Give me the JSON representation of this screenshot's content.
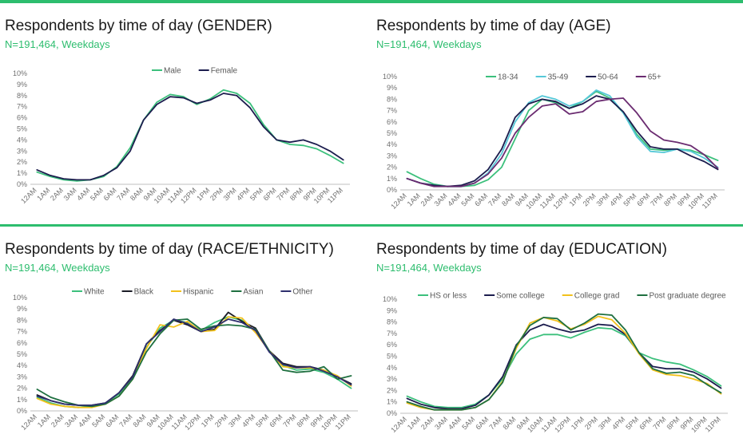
{
  "colors": {
    "accent": "#2dbd6e",
    "grid": "#d9d9d9",
    "axis": "#bfbfbf",
    "text": "#1a1a1a",
    "tick": "#707070"
  },
  "chart_data": [
    {
      "id": "gender",
      "type": "line",
      "title": "Respondents by time of day (GENDER)",
      "subtitle": "N=191,464, Weekdays",
      "legend_position": "top-center",
      "grid": false,
      "ylim": [
        0,
        10
      ],
      "y_ticks": [
        "0%",
        "1%",
        "2%",
        "3%",
        "4%",
        "5%",
        "6%",
        "7%",
        "8%",
        "9%",
        "10%"
      ],
      "categories": [
        "12AM",
        "1AM",
        "2AM",
        "3AM",
        "4AM",
        "5AM",
        "6AM",
        "7AM",
        "8AM",
        "9AM",
        "10AM",
        "11AM",
        "12PM",
        "1PM",
        "2PM",
        "3PM",
        "4PM",
        "5PM",
        "6PM",
        "7PM",
        "8PM",
        "9PM",
        "10PM",
        "11PM"
      ],
      "series": [
        {
          "name": "Male",
          "color": "#3cc07c",
          "values": [
            1.1,
            0.7,
            0.4,
            0.3,
            0.4,
            0.7,
            1.6,
            3.3,
            5.8,
            7.4,
            8.1,
            7.9,
            7.2,
            7.7,
            8.5,
            8.2,
            7.3,
            5.4,
            4.0,
            3.6,
            3.5,
            3.2,
            2.6,
            1.9
          ]
        },
        {
          "name": "Female",
          "color": "#1c1d4e",
          "values": [
            1.3,
            0.8,
            0.5,
            0.4,
            0.4,
            0.8,
            1.5,
            3.0,
            5.8,
            7.2,
            7.9,
            7.8,
            7.3,
            7.6,
            8.2,
            8.0,
            6.9,
            5.2,
            4.0,
            3.8,
            4.0,
            3.6,
            3.0,
            2.2
          ]
        }
      ]
    },
    {
      "id": "age",
      "type": "line",
      "title": "Respondents by time of day (AGE)",
      "subtitle": "N=191,464, Weekdays",
      "legend_position": "top-center",
      "grid": false,
      "ylim": [
        0,
        10
      ],
      "y_ticks": [
        "0%",
        "1%",
        "2%",
        "3%",
        "4%",
        "5%",
        "6%",
        "7%",
        "8%",
        "9%",
        "10%"
      ],
      "categories": [
        "12AM",
        "1AM",
        "2AM",
        "3AM",
        "4AM",
        "5AM",
        "6AM",
        "7AM",
        "8AM",
        "9AM",
        "10AM",
        "11AM",
        "12PM",
        "1PM",
        "2PM",
        "3PM",
        "4PM",
        "5PM",
        "6PM",
        "7PM",
        "8PM",
        "9PM",
        "10PM",
        "11PM"
      ],
      "series": [
        {
          "name": "18-34",
          "color": "#3cc07c",
          "values": [
            1.6,
            1.0,
            0.5,
            0.3,
            0.3,
            0.4,
            0.9,
            2.0,
            4.5,
            7.0,
            8.0,
            7.7,
            7.2,
            7.8,
            8.7,
            8.1,
            6.8,
            4.9,
            3.6,
            3.5,
            3.6,
            3.5,
            3.1,
            2.6
          ]
        },
        {
          "name": "35-49",
          "color": "#56c8d8",
          "values": [
            1.0,
            0.6,
            0.4,
            0.3,
            0.3,
            0.6,
            1.5,
            3.2,
            6.0,
            7.7,
            8.3,
            8.0,
            7.4,
            7.8,
            8.8,
            8.3,
            6.8,
            4.7,
            3.4,
            3.3,
            3.6,
            3.4,
            2.8,
            2.0
          ]
        },
        {
          "name": "50-64",
          "color": "#1c1d4e",
          "values": [
            1.0,
            0.6,
            0.4,
            0.3,
            0.4,
            0.8,
            1.8,
            3.6,
            6.4,
            7.6,
            8.0,
            7.8,
            7.2,
            7.6,
            8.3,
            8.0,
            6.9,
            5.2,
            3.8,
            3.6,
            3.6,
            3.0,
            2.5,
            1.8
          ]
        },
        {
          "name": "65+",
          "color": "#6b2c71",
          "values": [
            1.0,
            0.6,
            0.3,
            0.3,
            0.3,
            0.6,
            1.4,
            2.8,
            5.0,
            6.4,
            7.4,
            7.6,
            6.7,
            6.9,
            7.8,
            8.0,
            8.1,
            6.8,
            5.2,
            4.4,
            4.2,
            3.9,
            3.1,
            1.9
          ]
        }
      ]
    },
    {
      "id": "race",
      "type": "line",
      "title": "Respondents by time of day (RACE/ETHNICITY)",
      "subtitle": "N=191,464, Weekdays",
      "legend_position": "top-center",
      "grid": false,
      "ylim": [
        0,
        10
      ],
      "y_ticks": [
        "0%",
        "1%",
        "2%",
        "3%",
        "4%",
        "5%",
        "6%",
        "7%",
        "8%",
        "9%",
        "10%"
      ],
      "categories": [
        "12AM",
        "1AM",
        "2AM",
        "3AM",
        "4AM",
        "5AM",
        "6AM",
        "7AM",
        "8AM",
        "9AM",
        "10AM",
        "11AM",
        "12PM",
        "1PM",
        "2PM",
        "3PM",
        "4PM",
        "5PM",
        "6PM",
        "7PM",
        "8PM",
        "9PM",
        "10PM",
        "11PM"
      ],
      "series": [
        {
          "name": "White",
          "color": "#3cc07c",
          "values": [
            1.2,
            0.7,
            0.4,
            0.3,
            0.4,
            0.7,
            1.5,
            3.0,
            5.6,
            7.3,
            8.0,
            7.8,
            7.1,
            7.8,
            8.3,
            8.0,
            7.0,
            5.3,
            4.0,
            3.6,
            3.7,
            3.4,
            2.8,
            2.0
          ]
        },
        {
          "name": "Black",
          "color": "#1b1c26",
          "values": [
            1.4,
            0.9,
            0.6,
            0.5,
            0.5,
            0.7,
            1.6,
            3.1,
            5.9,
            7.1,
            8.0,
            7.6,
            7.0,
            7.2,
            8.7,
            7.9,
            7.3,
            5.3,
            4.2,
            3.9,
            3.9,
            3.6,
            3.0,
            2.4
          ]
        },
        {
          "name": "Hispanic",
          "color": "#f2c11c",
          "values": [
            1.1,
            0.6,
            0.4,
            0.3,
            0.3,
            0.6,
            1.3,
            2.8,
            5.5,
            7.6,
            7.4,
            7.9,
            7.0,
            7.1,
            8.3,
            8.2,
            6.9,
            5.3,
            3.9,
            3.8,
            3.8,
            3.6,
            3.1,
            2.2
          ]
        },
        {
          "name": "Asian",
          "color": "#1f7040",
          "values": [
            1.9,
            1.2,
            0.8,
            0.5,
            0.4,
            0.6,
            1.3,
            2.8,
            5.2,
            6.8,
            8.0,
            8.1,
            7.2,
            7.5,
            7.6,
            7.5,
            7.2,
            5.3,
            3.6,
            3.4,
            3.5,
            3.9,
            2.8,
            3.1
          ]
        },
        {
          "name": "Other",
          "color": "#2e2f6e",
          "values": [
            1.3,
            0.9,
            0.6,
            0.5,
            0.5,
            0.7,
            1.6,
            3.0,
            5.9,
            7.0,
            8.1,
            7.7,
            7.0,
            7.4,
            8.1,
            7.8,
            7.1,
            5.2,
            4.1,
            3.8,
            3.9,
            3.5,
            3.0,
            2.3
          ]
        }
      ]
    },
    {
      "id": "education",
      "type": "line",
      "title": "Respondents by time of day (EDUCATION)",
      "subtitle": "N=191,464, Weekdays",
      "legend_position": "top-center",
      "grid": false,
      "ylim": [
        0,
        10
      ],
      "y_ticks": [
        "0%",
        "1%",
        "2%",
        "3%",
        "4%",
        "5%",
        "6%",
        "7%",
        "8%",
        "9%",
        "10%"
      ],
      "categories": [
        "12AM",
        "1AM",
        "2AM",
        "3AM",
        "4AM",
        "5AM",
        "6AM",
        "7AM",
        "8AM",
        "9AM",
        "10AM",
        "11AM",
        "12PM",
        "1PM",
        "2PM",
        "3PM",
        "4PM",
        "5PM",
        "6PM",
        "7PM",
        "8PM",
        "9PM",
        "10PM",
        "11PM"
      ],
      "series": [
        {
          "name": "HS or less",
          "color": "#3cc07c",
          "values": [
            1.5,
            1.0,
            0.6,
            0.5,
            0.5,
            0.8,
            1.6,
            3.0,
            5.2,
            6.5,
            6.9,
            6.9,
            6.6,
            7.1,
            7.5,
            7.4,
            6.8,
            5.3,
            4.8,
            4.5,
            4.3,
            3.8,
            3.2,
            2.4
          ]
        },
        {
          "name": "Some college",
          "color": "#1c1d4e",
          "values": [
            1.3,
            0.8,
            0.5,
            0.4,
            0.4,
            0.7,
            1.6,
            3.2,
            6.0,
            7.3,
            7.8,
            7.4,
            7.1,
            7.3,
            7.8,
            7.7,
            6.9,
            5.3,
            4.1,
            3.9,
            3.9,
            3.6,
            3.0,
            2.2
          ]
        },
        {
          "name": "College grad",
          "color": "#f2c11c",
          "values": [
            0.9,
            0.5,
            0.3,
            0.3,
            0.3,
            0.5,
            1.2,
            2.8,
            5.7,
            7.9,
            8.4,
            8.1,
            7.4,
            7.8,
            8.5,
            8.2,
            7.0,
            5.2,
            3.8,
            3.4,
            3.3,
            3.0,
            2.6,
            1.7
          ]
        },
        {
          "name": "Post graduate degree",
          "color": "#1f7040",
          "values": [
            1.0,
            0.6,
            0.3,
            0.3,
            0.3,
            0.5,
            1.2,
            2.7,
            5.9,
            7.7,
            8.4,
            8.3,
            7.3,
            7.9,
            8.7,
            8.6,
            7.3,
            5.3,
            3.9,
            3.5,
            3.6,
            3.3,
            2.5,
            1.8
          ]
        }
      ]
    }
  ]
}
